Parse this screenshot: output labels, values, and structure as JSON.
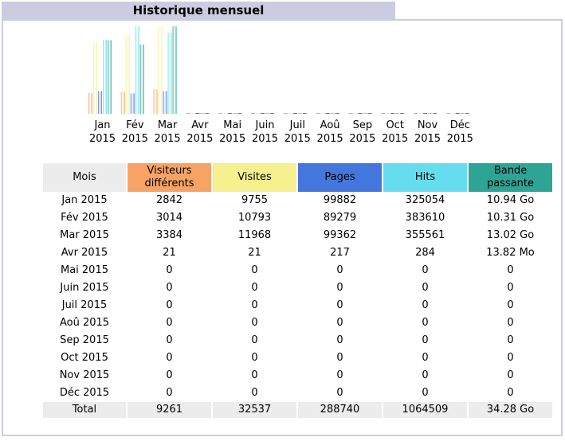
{
  "title": "Historique mensuel",
  "colors": {
    "visitors": "#f8a366",
    "visits": "#f6f08e",
    "pages": "#4477dd",
    "hits": "#66ddee",
    "bandwidth": "#2ea495",
    "header_gray": "#ececec",
    "title_bar": "#cccce0"
  },
  "chart_data": {
    "type": "bar",
    "categories": [
      "Jan 2015",
      "Fév 2015",
      "Mar 2015",
      "Avr 2015",
      "Mai 2015",
      "Juin 2015",
      "Juil 2015",
      "Aoû 2015",
      "Sep 2015",
      "Oct 2015",
      "Nov 2015",
      "Déc 2015"
    ],
    "category_lines": [
      [
        "Jan",
        "2015"
      ],
      [
        "Fév",
        "2015"
      ],
      [
        "Mar",
        "2015"
      ],
      [
        "Avr",
        "2015"
      ],
      [
        "Mai",
        "2015"
      ],
      [
        "Juin",
        "2015"
      ],
      [
        "Juil",
        "2015"
      ],
      [
        "Aoû",
        "2015"
      ],
      [
        "Sep",
        "2015"
      ],
      [
        "Oct",
        "2015"
      ],
      [
        "Nov",
        "2015"
      ],
      [
        "Déc",
        "2015"
      ]
    ],
    "series": [
      {
        "name": "Visiteurs différents",
        "color": "#f8a366",
        "values": [
          2842,
          3014,
          3384,
          21,
          0,
          0,
          0,
          0,
          0,
          0,
          0,
          0
        ]
      },
      {
        "name": "Visites",
        "color": "#f6f08e",
        "values": [
          9755,
          10793,
          11968,
          21,
          0,
          0,
          0,
          0,
          0,
          0,
          0,
          0
        ]
      },
      {
        "name": "Pages",
        "color": "#4477dd",
        "values": [
          99882,
          89279,
          99362,
          217,
          0,
          0,
          0,
          0,
          0,
          0,
          0,
          0
        ]
      },
      {
        "name": "Hits",
        "color": "#66ddee",
        "values": [
          325054,
          383610,
          355561,
          284,
          0,
          0,
          0,
          0,
          0,
          0,
          0,
          0
        ]
      },
      {
        "name": "Bande passante",
        "color": "#2ea495",
        "values_go": [
          10.94,
          10.31,
          13.02,
          0.0135,
          0,
          0,
          0,
          0,
          0,
          0,
          0,
          0
        ]
      }
    ]
  },
  "table": {
    "headers": {
      "mois": "Mois",
      "visiteurs_1": "Visiteurs",
      "visiteurs_2": "différents",
      "visites": "Visites",
      "pages": "Pages",
      "hits": "Hits",
      "bande_1": "Bande",
      "bande_2": "passante"
    },
    "rows": [
      {
        "mois": "Jan 2015",
        "visiteurs": "2842",
        "visites": "9755",
        "pages": "99882",
        "hits": "325054",
        "bande": "10.94 Go"
      },
      {
        "mois": "Fév 2015",
        "visiteurs": "3014",
        "visites": "10793",
        "pages": "89279",
        "hits": "383610",
        "bande": "10.31 Go"
      },
      {
        "mois": "Mar 2015",
        "visiteurs": "3384",
        "visites": "11968",
        "pages": "99362",
        "hits": "355561",
        "bande": "13.02 Go"
      },
      {
        "mois": "Avr 2015",
        "visiteurs": "21",
        "visites": "21",
        "pages": "217",
        "hits": "284",
        "bande": "13.82 Mo"
      },
      {
        "mois": "Mai 2015",
        "visiteurs": "0",
        "visites": "0",
        "pages": "0",
        "hits": "0",
        "bande": "0"
      },
      {
        "mois": "Juin 2015",
        "visiteurs": "0",
        "visites": "0",
        "pages": "0",
        "hits": "0",
        "bande": "0"
      },
      {
        "mois": "Juil 2015",
        "visiteurs": "0",
        "visites": "0",
        "pages": "0",
        "hits": "0",
        "bande": "0"
      },
      {
        "mois": "Aoû 2015",
        "visiteurs": "0",
        "visites": "0",
        "pages": "0",
        "hits": "0",
        "bande": "0"
      },
      {
        "mois": "Sep 2015",
        "visiteurs": "0",
        "visites": "0",
        "pages": "0",
        "hits": "0",
        "bande": "0"
      },
      {
        "mois": "Oct 2015",
        "visiteurs": "0",
        "visites": "0",
        "pages": "0",
        "hits": "0",
        "bande": "0"
      },
      {
        "mois": "Nov 2015",
        "visiteurs": "0",
        "visites": "0",
        "pages": "0",
        "hits": "0",
        "bande": "0"
      },
      {
        "mois": "Déc 2015",
        "visiteurs": "0",
        "visites": "0",
        "pages": "0",
        "hits": "0",
        "bande": "0"
      }
    ],
    "total": {
      "mois": "Total",
      "visiteurs": "9261",
      "visites": "32537",
      "pages": "288740",
      "hits": "1064509",
      "bande": "34.28 Go"
    }
  }
}
